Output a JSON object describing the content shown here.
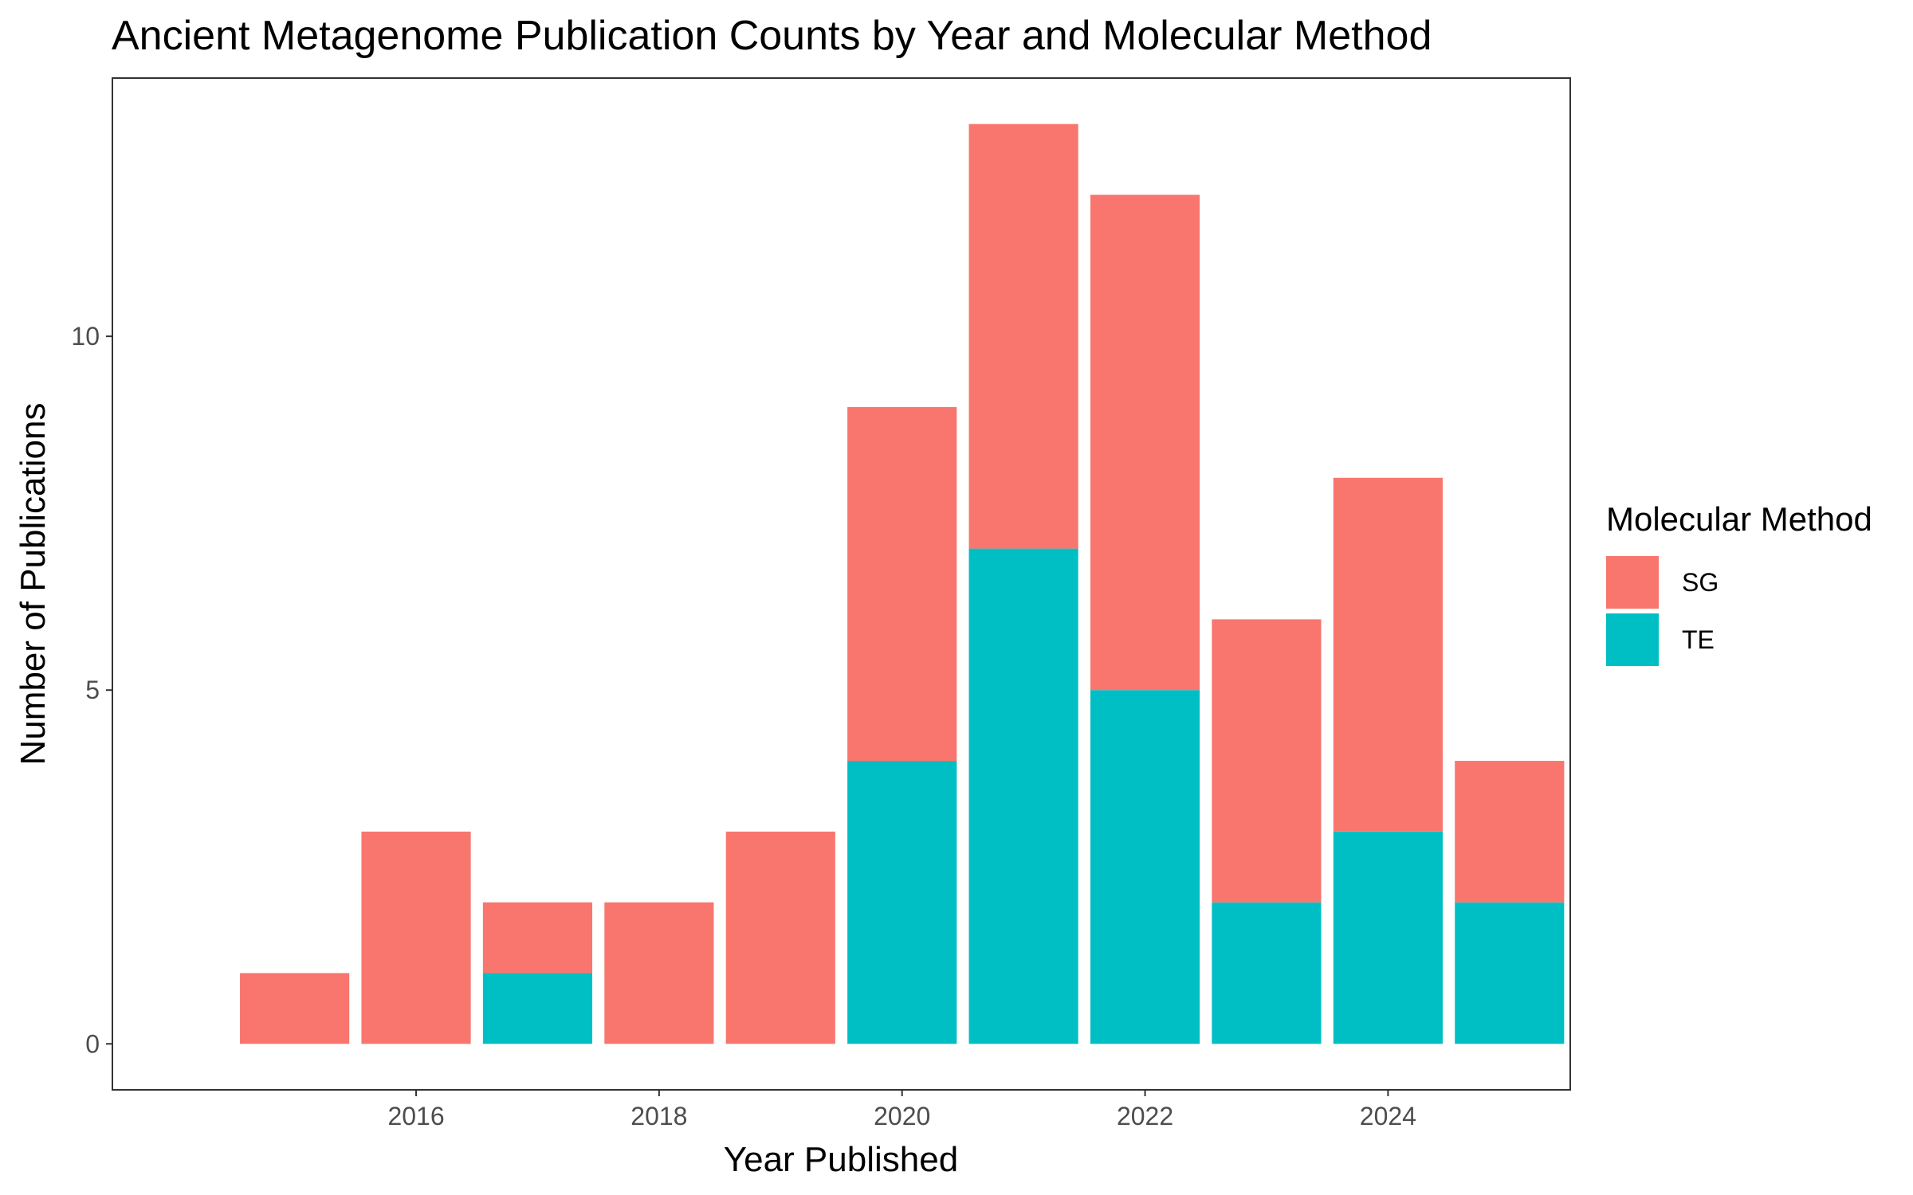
{
  "chart_data": {
    "type": "bar",
    "stacked": true,
    "title": "Ancient Metagenome Publication Counts by Year and Molecular Method",
    "xlabel": "Year Published",
    "ylabel": "Number of Publications",
    "x": [
      2015,
      2016,
      2017,
      2018,
      2019,
      2020,
      2021,
      2022,
      2023,
      2024,
      2025
    ],
    "x_ticks": [
      2016,
      2018,
      2020,
      2022,
      2024
    ],
    "y_ticks": [
      0,
      5,
      10
    ],
    "xlim": [
      2013.5,
      2025.5
    ],
    "ylim": [
      -0.65,
      13.65
    ],
    "grid": false,
    "legend": {
      "title": "Molecular Method",
      "placement": "right"
    },
    "series": [
      {
        "name": "TE",
        "color": "#00BFC4",
        "values": [
          0,
          0,
          1,
          0,
          0,
          4,
          7,
          5,
          2,
          3,
          2
        ]
      },
      {
        "name": "SG",
        "color": "#F8766D",
        "values": [
          1,
          3,
          1,
          2,
          3,
          5,
          6,
          7,
          4,
          5,
          2
        ]
      }
    ],
    "legend_order": [
      "SG",
      "TE"
    ]
  }
}
